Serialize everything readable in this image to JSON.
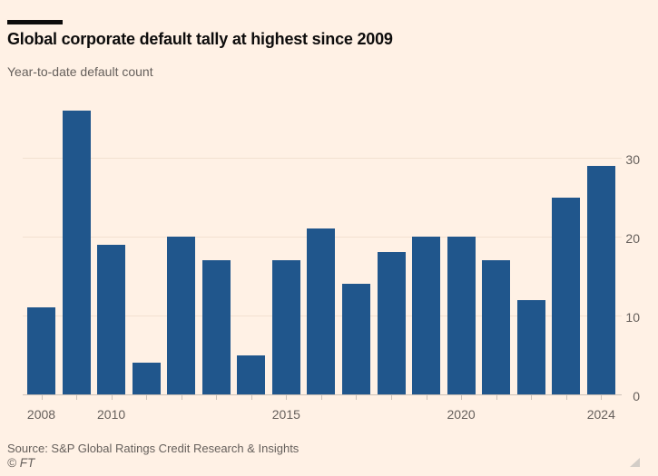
{
  "header": {
    "title": "Global corporate default tally at highest since 2009",
    "subtitle": "Year-to-date default count"
  },
  "footer": {
    "source": "Source: S&P Global Ratings Credit Research & Insights",
    "credit": "© FT"
  },
  "colors": {
    "background": "#FFF1E5",
    "bar": "#20568C",
    "gridline": "#F2E1D1",
    "axis": "#CCC1B7",
    "text_muted": "#66605C",
    "title_text": "#0D0C0C",
    "grip": "#D3CDC7"
  },
  "chart_data": {
    "type": "bar",
    "title": "Global corporate default tally at highest since 2009",
    "subtitle": "Year-to-date default count",
    "categories": [
      "2008",
      "2009",
      "2010",
      "2011",
      "2012",
      "2013",
      "2014",
      "2015",
      "2016",
      "2017",
      "2018",
      "2019",
      "2020",
      "2021",
      "2022",
      "2023",
      "2024"
    ],
    "values": [
      11,
      36,
      19,
      4,
      20,
      17,
      5,
      17,
      21,
      14,
      18,
      20,
      20,
      17,
      12,
      25,
      29
    ],
    "xlabel": "",
    "ylabel": "",
    "ylim": [
      0,
      37.5
    ],
    "yticks": [
      0,
      10,
      20,
      30
    ],
    "ytick_side": "right",
    "xtick_labels": [
      "2008",
      "2010",
      "2015",
      "2020",
      "2024"
    ],
    "grid": true,
    "legend": "none",
    "source": "Source: S&P Global Ratings Credit Research & Insights",
    "credit": "© FT"
  }
}
